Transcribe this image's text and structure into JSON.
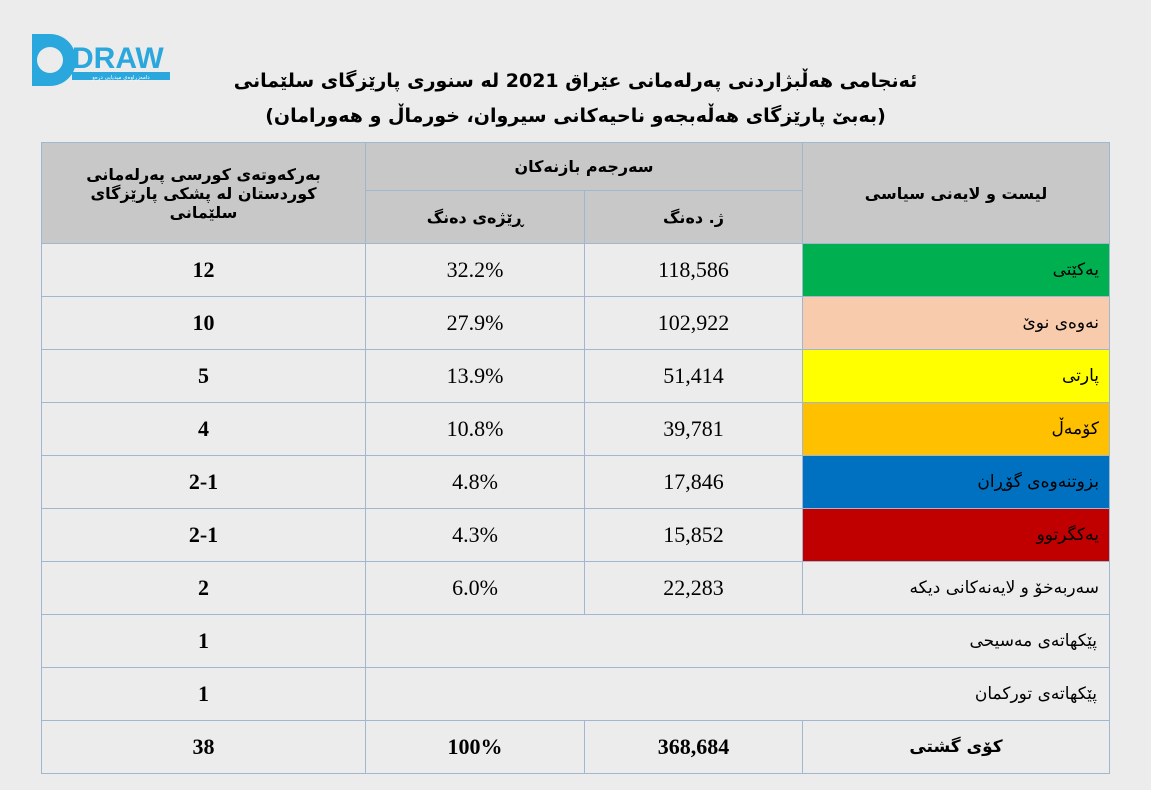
{
  "logo": {
    "text": "DRAW",
    "tagline": "دامەزراوەی میدیایی درەو",
    "color": "#2aa7dc"
  },
  "title": {
    "line1": "ئەنجامی هەڵبژاردنی پەرلەمانی عێراق 2021 لە سنوری پارێزگای سلێمانی",
    "line2": "(بەبێ پارێزگای هەڵەبجەو ناحیەکانی سیروان، خورماڵ و هەورامان)"
  },
  "header": {
    "list_label": "لیست و لایەنی سیاسی",
    "results_label": "سەرجەم بازنەکان",
    "votes_label": "ژ. دەنگ",
    "pct_label": "ڕێژەی دەنگ",
    "seats_label": "بەرکەوتەی کورسی پەرلەمانی کوردستان لە پشکی پارێزگای سلێمانی"
  },
  "rows": [
    {
      "name": "یەکێتی",
      "votes": "118,586",
      "pct": "32.2%",
      "seats": "12",
      "color": "#00b050",
      "text_color": "#000000"
    },
    {
      "name": "نەوەی نوێ",
      "votes": "102,922",
      "pct": "27.9%",
      "seats": "10",
      "color": "#f8cbad",
      "text_color": "#000000"
    },
    {
      "name": "پارتی",
      "votes": "51,414",
      "pct": "13.9%",
      "seats": "5",
      "color": "#ffff00",
      "text_color": "#000000"
    },
    {
      "name": "کۆمەڵ",
      "votes": "39,781",
      "pct": "10.8%",
      "seats": "4",
      "color": "#ffc000",
      "text_color": "#000000"
    },
    {
      "name": "بزوتنەوەی گۆڕان",
      "votes": "17,846",
      "pct": "4.8%",
      "seats": "2-1",
      "color": "#0070c0",
      "text_color": "#000000"
    },
    {
      "name": "یەکگرتوو",
      "votes": "15,852",
      "pct": "4.3%",
      "seats": "2-1",
      "color": "#c00000",
      "text_color": "#000000"
    },
    {
      "name": "سەربەخۆ و لایەنەکانی دیکە",
      "votes": "22,283",
      "pct": "6.0%",
      "seats": "2",
      "color": "#ececec",
      "text_color": "#000000"
    }
  ],
  "quota_rows": [
    {
      "name": "پێکهاتەی مەسیحی",
      "seats": "1"
    },
    {
      "name": "پێکهاتەی تورکمان",
      "seats": "1"
    }
  ],
  "total": {
    "name": "کۆی گشتی",
    "votes": "368,684",
    "pct": "100%",
    "seats": "38"
  }
}
